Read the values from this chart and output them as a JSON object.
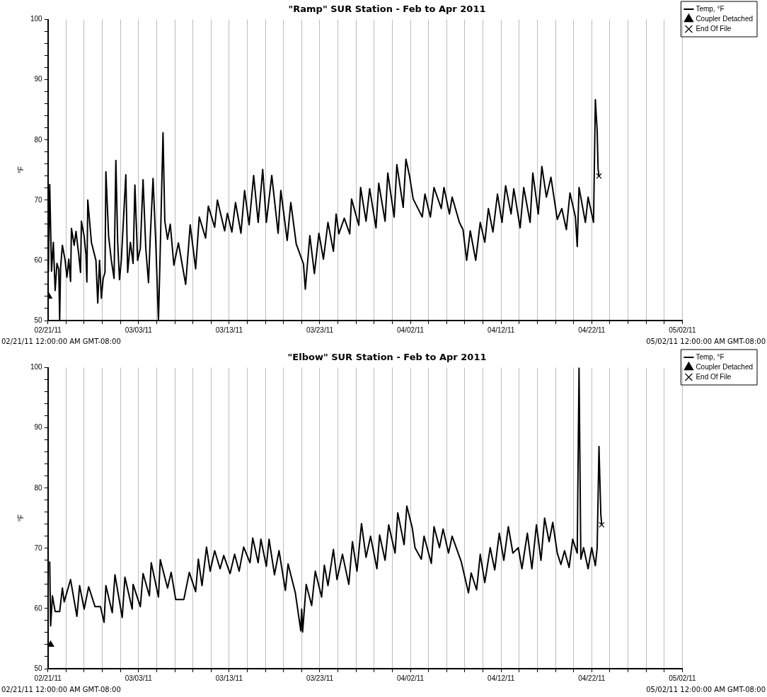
{
  "chart_data": [
    {
      "type": "line",
      "title": "\"Ramp\" SUR Station - Feb to Apr 2011",
      "ylabel": "°F",
      "grid": "x",
      "legend": "top right",
      "xlim": [
        "2011-02-21",
        "2011-05-02"
      ],
      "ylim": [
        50,
        100
      ],
      "xticks": [
        {
          "value": "2011-02-21",
          "label": "02/21/11"
        },
        {
          "value": "2011-02-23",
          "label": null
        },
        {
          "value": "2011-02-25",
          "label": null
        },
        {
          "value": "2011-02-27",
          "label": null
        },
        {
          "value": "2011-03-01",
          "label": null
        },
        {
          "value": "2011-03-03",
          "label": "03/03/11"
        },
        {
          "value": "2011-03-05",
          "label": null
        },
        {
          "value": "2011-03-07",
          "label": null
        },
        {
          "value": "2011-03-09",
          "label": null
        },
        {
          "value": "2011-03-11",
          "label": null
        },
        {
          "value": "2011-03-13",
          "label": "03/13/11"
        },
        {
          "value": "2011-03-15",
          "label": null
        },
        {
          "value": "2011-03-17",
          "label": null
        },
        {
          "value": "2011-03-19",
          "label": null
        },
        {
          "value": "2011-03-21",
          "label": null
        },
        {
          "value": "2011-03-23",
          "label": "03/23/11"
        },
        {
          "value": "2011-03-25",
          "label": null
        },
        {
          "value": "2011-03-27",
          "label": null
        },
        {
          "value": "2011-03-29",
          "label": null
        },
        {
          "value": "2011-03-31",
          "label": null
        },
        {
          "value": "2011-04-02",
          "label": "04/02/11"
        },
        {
          "value": "2011-04-04",
          "label": null
        },
        {
          "value": "2011-04-06",
          "label": null
        },
        {
          "value": "2011-04-08",
          "label": null
        },
        {
          "value": "2011-04-10",
          "label": null
        },
        {
          "value": "2011-04-12",
          "label": "04/12/11"
        },
        {
          "value": "2011-04-14",
          "label": null
        },
        {
          "value": "2011-04-16",
          "label": null
        },
        {
          "value": "2011-04-18",
          "label": null
        },
        {
          "value": "2011-04-20",
          "label": null
        },
        {
          "value": "2011-04-22",
          "label": "04/22/11"
        },
        {
          "value": "2011-04-24",
          "label": null
        },
        {
          "value": "2011-04-26",
          "label": null
        },
        {
          "value": "2011-04-28",
          "label": null
        },
        {
          "value": "2011-04-30",
          "label": null
        },
        {
          "value": "2011-05-02",
          "label": "05/02/11"
        }
      ],
      "yticks": [
        50,
        {
          "value": 52,
          "label": null
        },
        {
          "value": 54,
          "label": null
        },
        {
          "value": 56,
          "label": null
        },
        {
          "value": 58,
          "label": null
        },
        60,
        {
          "value": 62,
          "label": null
        },
        {
          "value": 64,
          "label": null
        },
        {
          "value": 66,
          "label": null
        },
        {
          "value": 68,
          "label": null
        },
        70,
        {
          "value": 72,
          "label": null
        },
        {
          "value": 74,
          "label": null
        },
        {
          "value": 76,
          "label": null
        },
        {
          "value": 78,
          "label": null
        },
        80,
        {
          "value": 82,
          "label": null
        },
        {
          "value": 84,
          "label": null
        },
        {
          "value": 86,
          "label": null
        },
        {
          "value": 88,
          "label": null
        },
        90,
        {
          "value": 92,
          "label": null
        },
        {
          "value": 94,
          "label": null
        },
        {
          "value": 96,
          "label": null
        },
        {
          "value": 98,
          "label": null
        },
        100
      ],
      "annotations": [
        "02/21/11 12:00:00 AM GMT-08:00",
        "05/02/11 12:00:00 AM GMT-08:00"
      ],
      "series": [
        {
          "name": "Temp, °F",
          "type": "line",
          "color": "#000000",
          "marker": "none",
          "line_style": "solid",
          "x": [
            "2011-02-21T01:12",
            "2011-02-21T04:48",
            "2011-02-21T09:36",
            "2011-02-21T14:24",
            "2011-02-21T19:12",
            "2011-02-22T00:00",
            "2011-02-22T04:48",
            "2011-02-22T07:12",
            "2011-02-22T09:36",
            "2011-02-22T14:24",
            "2011-02-22T21:36",
            "2011-02-23T02:24",
            "2011-02-23T07:12",
            "2011-02-23T12:00",
            "2011-02-23T14:24",
            "2011-02-23T21:36",
            "2011-02-24T02:24",
            "2011-02-24T09:36",
            "2011-02-24T14:24",
            "2011-02-24T16:48",
            "2011-02-25T00:00",
            "2011-02-25T04:48",
            "2011-02-25T07:12",
            "2011-02-25T09:36",
            "2011-02-25T19:12",
            "2011-02-26T07:12",
            "2011-02-26T12:00",
            "2011-02-26T16:48",
            "2011-02-26T21:36",
            "2011-02-27T02:24",
            "2011-02-27T07:12",
            "2011-02-27T09:36",
            "2011-02-27T16:48",
            "2011-02-28T00:00",
            "2011-02-28T07:12",
            "2011-02-28T12:00",
            "2011-02-28T16:48",
            "2011-02-28T21:36",
            "2011-03-01T02:24",
            "2011-03-01T14:24",
            "2011-03-01T19:12",
            "2011-03-02T02:24",
            "2011-03-02T09:36",
            "2011-03-02T14:24",
            "2011-03-02T21:36",
            "2011-03-03T04:48",
            "2011-03-03T12:00",
            "2011-03-03T19:12",
            "2011-03-04T02:24",
            "2011-03-04T07:12",
            "2011-03-04T14:24",
            "2011-03-04T21:36",
            "2011-03-05T04:48",
            "2011-03-05T09:36",
            "2011-03-05T16:48",
            "2011-03-05T21:36",
            "2011-03-06T04:48",
            "2011-03-06T12:00",
            "2011-03-06T21:36",
            "2011-03-07T09:36",
            "2011-03-08T04:48",
            "2011-03-08T16:48",
            "2011-03-09T07:12",
            "2011-03-09T16:48",
            "2011-03-10T09:36",
            "2011-03-10T16:48",
            "2011-03-11T09:36",
            "2011-03-11T16:48",
            "2011-03-12T12:00",
            "2011-03-12T19:12",
            "2011-03-13T07:12",
            "2011-03-13T16:48",
            "2011-03-14T07:12",
            "2011-03-14T16:48",
            "2011-03-15T04:48",
            "2011-03-15T16:48",
            "2011-03-16T04:48",
            "2011-03-16T16:48",
            "2011-03-17T02:24",
            "2011-03-17T16:48",
            "2011-03-18T09:36",
            "2011-03-18T16:48",
            "2011-03-19T09:36",
            "2011-03-19T19:12",
            "2011-03-20T09:36",
            "2011-03-21T04:48",
            "2011-03-21T09:36",
            "2011-03-21T21:36",
            "2011-03-22T09:36",
            "2011-03-22T21:36",
            "2011-03-23T09:36",
            "2011-03-23T21:36",
            "2011-03-24T12:00",
            "2011-03-24T19:12",
            "2011-03-25T02:24",
            "2011-03-25T16:48",
            "2011-03-26T07:12",
            "2011-03-26T12:00",
            "2011-03-27T07:12",
            "2011-03-27T12:00",
            "2011-03-28T02:24",
            "2011-03-28T12:00",
            "2011-03-29T04:48",
            "2011-03-29T12:00",
            "2011-03-30T04:48",
            "2011-03-30T12:00",
            "2011-03-31T04:48",
            "2011-03-31T12:00",
            "2011-04-01T04:48",
            "2011-04-01T12:00",
            "2011-04-01T21:36",
            "2011-04-02T07:12",
            "2011-04-03T07:12",
            "2011-04-03T14:24",
            "2011-04-04T04:48",
            "2011-04-04T14:24",
            "2011-04-05T09:36",
            "2011-04-05T16:48",
            "2011-04-06T07:12",
            "2011-04-06T14:24",
            "2011-04-07T09:36",
            "2011-04-07T19:12",
            "2011-04-08T04:48",
            "2011-04-08T14:24",
            "2011-04-09T04:48",
            "2011-04-09T16:48",
            "2011-04-10T04:48",
            "2011-04-10T14:24",
            "2011-04-11T02:24",
            "2011-04-11T14:24",
            "2011-04-12T02:24",
            "2011-04-12T12:00",
            "2011-04-13T02:24",
            "2011-04-13T09:36",
            "2011-04-14T02:24",
            "2011-04-14T12:00",
            "2011-04-15T04:48",
            "2011-04-15T12:00",
            "2011-04-16T02:24",
            "2011-04-16T12:00",
            "2011-04-17T00:00",
            "2011-04-17T12:00",
            "2011-04-18T04:48",
            "2011-04-18T16:48",
            "2011-04-19T04:48",
            "2011-04-19T14:24",
            "2011-04-20T04:48",
            "2011-04-20T09:36",
            "2011-04-20T14:24",
            "2011-04-21T07:12",
            "2011-04-21T14:24",
            "2011-04-22T04:48",
            "2011-04-22T09:36",
            "2011-04-22T14:24",
            "2011-04-22T16:48",
            "2011-04-22T19:12"
          ],
          "values": [
            58,
            72.6,
            58.2,
            63,
            55,
            59.5,
            58.5,
            50,
            58.8,
            62.5,
            60,
            57.2,
            60.2,
            56.5,
            65.3,
            62.5,
            64.8,
            61,
            58,
            66.5,
            64,
            61,
            56.4,
            70,
            63,
            60,
            52.9,
            60,
            53.7,
            57,
            58,
            74.7,
            64,
            60,
            57,
            76.6,
            63,
            56.8,
            60,
            74.2,
            58,
            63,
            59.5,
            72.5,
            60,
            62,
            73.4,
            62,
            56.3,
            64,
            73.6,
            63,
            50,
            62,
            81.2,
            66.5,
            63.5,
            66,
            59.2,
            62.9,
            56,
            65.9,
            58.6,
            67.2,
            63.7,
            69,
            65.5,
            70,
            64.9,
            67.8,
            64.7,
            69.6,
            64.5,
            71.6,
            65.9,
            74.1,
            66.3,
            75.1,
            66.3,
            74.1,
            64.5,
            71.6,
            63.3,
            69.6,
            62.7,
            59.4,
            55.2,
            64.1,
            57.8,
            64.5,
            60.2,
            66.3,
            61.5,
            67.7,
            64.4,
            67,
            64.4,
            70.2,
            65.8,
            72.1,
            66.5,
            71.9,
            65.4,
            72.8,
            66.5,
            74.5,
            67.2,
            75.9,
            68.8,
            76.8,
            74,
            70.2,
            67.2,
            71,
            67.2,
            72.1,
            68.6,
            72.1,
            67.7,
            70.5,
            66.3,
            65.1,
            60,
            64.9,
            60,
            66.3,
            63,
            68.6,
            64.7,
            71,
            66.3,
            72.4,
            67.7,
            71.9,
            65.4,
            72.1,
            66.3,
            74.5,
            67.7,
            75.6,
            70.5,
            73.8,
            66.8,
            68.6,
            65.1,
            71.2,
            67.2,
            62.3,
            72.1,
            66.3,
            70.5,
            66.3,
            86.7,
            81.5,
            75.2,
            74
          ]
        },
        {
          "name": "Coupler Detached",
          "type": "scatter",
          "color": "#000000",
          "marker": "triangle",
          "x": [
            "2011-02-21T02:24"
          ],
          "values": [
            54
          ]
        },
        {
          "name": "End Of File",
          "type": "scatter",
          "color": "#000000",
          "marker": "cross",
          "x": [
            "2011-04-22T19:12"
          ],
          "values": [
            74
          ]
        }
      ]
    },
    {
      "type": "line",
      "title": "\"Elbow\" SUR Station - Feb to Apr 2011",
      "ylabel": "°F",
      "grid": "x",
      "legend": "top right",
      "xlim": [
        "2011-02-21",
        "2011-05-02"
      ],
      "ylim": [
        50,
        100
      ],
      "xticks": [
        {
          "value": "2011-02-21",
          "label": "02/21/11"
        },
        {
          "value": "2011-02-23",
          "label": null
        },
        {
          "value": "2011-02-25",
          "label": null
        },
        {
          "value": "2011-02-27",
          "label": null
        },
        {
          "value": "2011-03-01",
          "label": null
        },
        {
          "value": "2011-03-03",
          "label": "03/03/11"
        },
        {
          "value": "2011-03-05",
          "label": null
        },
        {
          "value": "2011-03-07",
          "label": null
        },
        {
          "value": "2011-03-09",
          "label": null
        },
        {
          "value": "2011-03-11",
          "label": null
        },
        {
          "value": "2011-03-13",
          "label": "03/13/11"
        },
        {
          "value": "2011-03-15",
          "label": null
        },
        {
          "value": "2011-03-17",
          "label": null
        },
        {
          "value": "2011-03-19",
          "label": null
        },
        {
          "value": "2011-03-21",
          "label": null
        },
        {
          "value": "2011-03-23",
          "label": "03/23/11"
        },
        {
          "value": "2011-03-25",
          "label": null
        },
        {
          "value": "2011-03-27",
          "label": null
        },
        {
          "value": "2011-03-29",
          "label": null
        },
        {
          "value": "2011-03-31",
          "label": null
        },
        {
          "value": "2011-04-02",
          "label": "04/02/11"
        },
        {
          "value": "2011-04-04",
          "label": null
        },
        {
          "value": "2011-04-06",
          "label": null
        },
        {
          "value": "2011-04-08",
          "label": null
        },
        {
          "value": "2011-04-10",
          "label": null
        },
        {
          "value": "2011-04-12",
          "label": "04/12/11"
        },
        {
          "value": "2011-04-14",
          "label": null
        },
        {
          "value": "2011-04-16",
          "label": null
        },
        {
          "value": "2011-04-18",
          "label": null
        },
        {
          "value": "2011-04-20",
          "label": null
        },
        {
          "value": "2011-04-22",
          "label": "04/22/11"
        },
        {
          "value": "2011-04-24",
          "label": null
        },
        {
          "value": "2011-04-26",
          "label": null
        },
        {
          "value": "2011-04-28",
          "label": null
        },
        {
          "value": "2011-04-30",
          "label": null
        },
        {
          "value": "2011-05-02",
          "label": "05/02/11"
        }
      ],
      "yticks": [
        50,
        {
          "value": 52,
          "label": null
        },
        {
          "value": 54,
          "label": null
        },
        {
          "value": 56,
          "label": null
        },
        {
          "value": 58,
          "label": null
        },
        60,
        {
          "value": 62,
          "label": null
        },
        {
          "value": 64,
          "label": null
        },
        {
          "value": 66,
          "label": null
        },
        {
          "value": 68,
          "label": null
        },
        70,
        {
          "value": 72,
          "label": null
        },
        {
          "value": 74,
          "label": null
        },
        {
          "value": 76,
          "label": null
        },
        {
          "value": 78,
          "label": null
        },
        80,
        {
          "value": 82,
          "label": null
        },
        {
          "value": 84,
          "label": null
        },
        {
          "value": 86,
          "label": null
        },
        {
          "value": 88,
          "label": null
        },
        90,
        {
          "value": 92,
          "label": null
        },
        {
          "value": 94,
          "label": null
        },
        {
          "value": 96,
          "label": null
        },
        {
          "value": 98,
          "label": null
        },
        100
      ],
      "annotations": [
        "02/21/11 12:00:00 AM GMT-08:00",
        "05/02/11 12:00:00 AM GMT-08:00"
      ],
      "series": [
        {
          "name": "Temp, °F",
          "type": "line",
          "color": "#000000",
          "marker": "none",
          "line_style": "solid",
          "x": [
            "2011-02-21T04:48",
            "2011-02-21T07:12",
            "2011-02-21T12:00",
            "2011-02-21T19:12",
            "2011-02-22T07:12",
            "2011-02-22T14:24",
            "2011-02-22T19:12",
            "2011-02-23T12:00",
            "2011-02-24T04:48",
            "2011-02-24T12:00",
            "2011-02-25T00:00",
            "2011-02-25T12:00",
            "2011-02-26T04:48",
            "2011-02-26T19:12",
            "2011-02-27T04:48",
            "2011-02-27T09:36",
            "2011-02-28T02:24",
            "2011-02-28T09:36",
            "2011-03-01T04:48",
            "2011-03-01T12:00",
            "2011-03-02T07:12",
            "2011-03-02T09:36",
            "2011-03-03T04:48",
            "2011-03-03T12:00",
            "2011-03-04T04:48",
            "2011-03-04T09:36",
            "2011-03-05T04:48",
            "2011-03-05T09:36",
            "2011-03-06T04:48",
            "2011-03-06T14:24",
            "2011-03-07T02:24",
            "2011-03-08T00:00",
            "2011-03-08T14:24",
            "2011-03-09T07:12",
            "2011-03-09T14:24",
            "2011-03-10T00:00",
            "2011-03-10T12:00",
            "2011-03-10T21:36",
            "2011-03-11T09:36",
            "2011-03-12T00:00",
            "2011-03-12T09:36",
            "2011-03-13T02:24",
            "2011-03-13T14:24",
            "2011-03-14T02:24",
            "2011-03-14T14:24",
            "2011-03-15T07:12",
            "2011-03-15T14:24",
            "2011-03-16T04:48",
            "2011-03-16T12:00",
            "2011-03-17T02:24",
            "2011-03-17T09:36",
            "2011-03-18T00:00",
            "2011-03-18T12:00",
            "2011-03-19T04:48",
            "2011-03-19T12:00",
            "2011-03-20T07:12",
            "2011-03-20T21:36",
            "2011-03-21T00:00",
            "2011-03-21T02:24",
            "2011-03-21T12:00",
            "2011-03-22T02:24",
            "2011-03-22T12:00",
            "2011-03-23T04:48",
            "2011-03-23T12:00",
            "2011-03-23T21:36",
            "2011-03-24T12:00",
            "2011-03-24T21:36",
            "2011-03-25T12:00",
            "2011-03-26T04:48",
            "2011-03-26T14:24",
            "2011-03-27T02:24",
            "2011-03-27T14:24",
            "2011-03-28T02:24",
            "2011-03-28T14:24",
            "2011-03-29T07:12",
            "2011-03-29T14:24",
            "2011-03-30T04:48",
            "2011-03-30T14:24",
            "2011-03-31T07:12",
            "2011-03-31T14:24",
            "2011-04-01T07:12",
            "2011-04-01T14:24",
            "2011-04-02T04:48",
            "2011-04-02T12:00",
            "2011-04-03T04:48",
            "2011-04-03T12:00",
            "2011-04-04T07:12",
            "2011-04-04T14:24",
            "2011-04-05T04:48",
            "2011-04-05T14:24",
            "2011-04-06T04:48",
            "2011-04-06T14:24",
            "2011-04-07T14:24",
            "2011-04-08T09:36",
            "2011-04-08T16:48",
            "2011-04-09T07:12",
            "2011-04-09T16:48",
            "2011-04-10T04:48",
            "2011-04-10T19:12",
            "2011-04-11T07:12",
            "2011-04-11T19:12",
            "2011-04-12T07:12",
            "2011-04-12T19:12",
            "2011-04-13T07:12",
            "2011-04-13T21:36",
            "2011-04-14T07:12",
            "2011-04-14T21:36",
            "2011-04-15T09:36",
            "2011-04-15T21:36",
            "2011-04-16T09:36",
            "2011-04-16T19:12",
            "2011-04-17T07:12",
            "2011-04-17T16:48",
            "2011-04-18T04:48",
            "2011-04-18T14:24",
            "2011-04-19T00:00",
            "2011-04-19T12:00",
            "2011-04-19T21:36",
            "2011-04-20T09:36",
            "2011-04-20T14:24",
            "2011-04-20T19:12",
            "2011-04-21T02:24",
            "2011-04-21T14:24",
            "2011-04-22T00:00",
            "2011-04-22T09:36",
            "2011-04-22T14:24",
            "2011-04-22T19:12",
            "2011-04-22T21:36",
            "2011-04-23T00:00",
            "2011-04-23T02:24"
          ],
          "values": [
            67.8,
            57.1,
            62.1,
            59.5,
            59.5,
            63.4,
            61.1,
            64.8,
            58.7,
            63.8,
            59.9,
            63.6,
            60.3,
            60.3,
            57.7,
            63.8,
            59.3,
            65.6,
            58.5,
            65.2,
            59.9,
            64,
            60.3,
            65.8,
            62.1,
            67.6,
            61.9,
            68.1,
            63.4,
            66,
            61.5,
            61.5,
            66,
            62.8,
            68.2,
            63.8,
            70.2,
            66.2,
            69.6,
            66.6,
            68.8,
            65.8,
            69,
            66.2,
            70.2,
            67.6,
            71.7,
            67.6,
            71.5,
            67,
            71.5,
            65.6,
            69.6,
            63,
            67.4,
            62.6,
            56.3,
            59.9,
            56.1,
            64,
            60.5,
            66.2,
            61.9,
            67.2,
            63.8,
            69.8,
            64.8,
            69,
            64,
            71.1,
            66.2,
            74.1,
            68.5,
            72,
            66.6,
            72.2,
            68,
            73.9,
            69.2,
            75.9,
            70.6,
            77,
            73.4,
            70.1,
            68.2,
            72,
            67.5,
            73.6,
            70.1,
            73.2,
            69.2,
            72,
            67.8,
            62.6,
            65.9,
            63.1,
            69,
            64.3,
            70.1,
            66.4,
            72.5,
            68,
            73.6,
            69.2,
            70.1,
            66.6,
            72.5,
            66.6,
            73.9,
            68,
            75,
            71.1,
            74.3,
            69.2,
            67.3,
            69.6,
            66.8,
            71.5,
            69.2,
            100,
            68.2,
            70.1,
            66.6,
            70.1,
            67.1,
            70.1,
            86.9,
            81.3,
            75.7,
            73.9
          ]
        },
        {
          "name": "Coupler Detached",
          "type": "scatter",
          "color": "#000000",
          "marker": "triangle",
          "x": [
            "2011-02-21T07:12"
          ],
          "values": [
            54
          ]
        },
        {
          "name": "End Of File",
          "type": "scatter",
          "color": "#000000",
          "marker": "cross",
          "x": [
            "2011-04-23T02:24"
          ],
          "values": [
            73.9
          ]
        }
      ]
    }
  ]
}
